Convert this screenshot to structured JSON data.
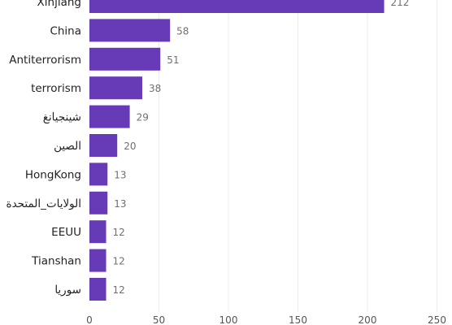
{
  "chart_data": {
    "type": "bar",
    "orientation": "horizontal",
    "categories": [
      "Xinjiang",
      "China",
      "Antiterrorism",
      "terrorism",
      "شينجيانغ",
      "الصين",
      "HongKong",
      "الولايات_المتحدة",
      "EEUU",
      "Tianshan",
      "سوريا"
    ],
    "values": [
      212,
      58,
      51,
      38,
      29,
      20,
      13,
      13,
      12,
      12,
      12
    ],
    "xlim": [
      0,
      250
    ],
    "x_ticks": [
      0,
      50,
      100,
      150,
      200,
      250
    ],
    "title": "",
    "xlabel": "",
    "ylabel": "",
    "grid": "vertical",
    "data_labels": true,
    "bar_color": "#673ab7"
  }
}
